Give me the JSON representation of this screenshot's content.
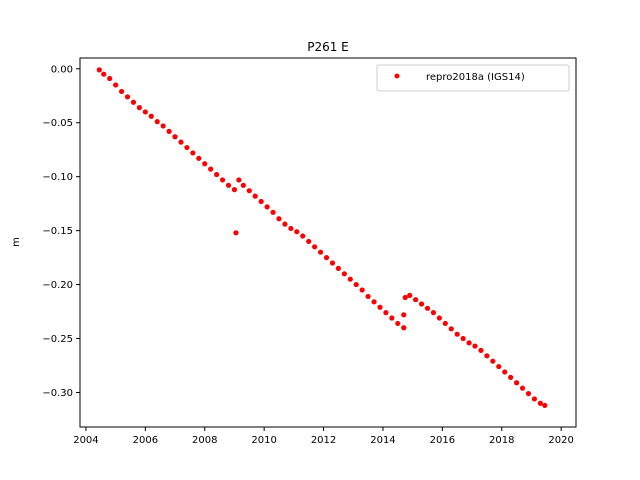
{
  "chart_data": {
    "type": "scatter",
    "title": "P261 E",
    "xlabel": "",
    "ylabel": "m",
    "xlim": [
      2003.8,
      2020.5
    ],
    "ylim": [
      -0.332,
      0.01
    ],
    "x_ticks": [
      2004,
      2006,
      2008,
      2010,
      2012,
      2014,
      2016,
      2018,
      2020
    ],
    "x_tick_labels": [
      "2004",
      "2006",
      "2008",
      "2010",
      "2012",
      "2014",
      "2016",
      "2018",
      "2020"
    ],
    "y_ticks": [
      0.0,
      -0.05,
      -0.1,
      -0.15,
      -0.2,
      -0.25,
      -0.3
    ],
    "y_tick_labels": [
      "0.00",
      "−0.05",
      "−0.10",
      "−0.15",
      "−0.20",
      "−0.25",
      "−0.30"
    ],
    "grid": false,
    "legend_position": "top-right",
    "marker_color": "#ff0000",
    "series": [
      {
        "name": "repro2018a (IGS14)",
        "color": "#ff0000",
        "x": [
          2004.45,
          2004.6,
          2004.8,
          2005.0,
          2005.2,
          2005.4,
          2005.6,
          2005.8,
          2006.0,
          2006.2,
          2006.4,
          2006.6,
          2006.8,
          2007.0,
          2007.2,
          2007.4,
          2007.6,
          2007.8,
          2008.0,
          2008.2,
          2008.4,
          2008.6,
          2008.8,
          2009.0,
          2009.15,
          2009.3,
          2009.5,
          2009.7,
          2009.9,
          2010.1,
          2010.3,
          2010.5,
          2010.7,
          2010.9,
          2011.1,
          2011.3,
          2011.5,
          2011.7,
          2011.9,
          2012.1,
          2012.3,
          2012.5,
          2012.7,
          2012.9,
          2013.1,
          2013.3,
          2013.5,
          2013.7,
          2013.9,
          2014.1,
          2014.3,
          2014.5,
          2014.7,
          2014.75,
          2014.9,
          2015.1,
          2015.3,
          2015.5,
          2015.7,
          2015.9,
          2016.1,
          2016.3,
          2016.5,
          2016.7,
          2016.9,
          2017.1,
          2017.3,
          2017.5,
          2017.7,
          2017.9,
          2018.1,
          2018.3,
          2018.5,
          2018.7,
          2018.9,
          2019.1,
          2019.3,
          2019.45
        ],
        "y": [
          -0.001,
          -0.005,
          -0.009,
          -0.015,
          -0.021,
          -0.026,
          -0.031,
          -0.036,
          -0.04,
          -0.044,
          -0.049,
          -0.053,
          -0.058,
          -0.063,
          -0.068,
          -0.073,
          -0.078,
          -0.083,
          -0.088,
          -0.093,
          -0.098,
          -0.103,
          -0.108,
          -0.112,
          -0.103,
          -0.108,
          -0.113,
          -0.118,
          -0.123,
          -0.128,
          -0.133,
          -0.139,
          -0.144,
          -0.148,
          -0.151,
          -0.155,
          -0.16,
          -0.165,
          -0.17,
          -0.175,
          -0.18,
          -0.185,
          -0.19,
          -0.195,
          -0.2,
          -0.205,
          -0.211,
          -0.216,
          -0.221,
          -0.226,
          -0.231,
          -0.236,
          -0.24,
          -0.212,
          -0.21,
          -0.214,
          -0.218,
          -0.222,
          -0.226,
          -0.231,
          -0.236,
          -0.241,
          -0.246,
          -0.25,
          -0.254,
          -0.257,
          -0.261,
          -0.266,
          -0.271,
          -0.276,
          -0.281,
          -0.286,
          -0.291,
          -0.296,
          -0.301,
          -0.306,
          -0.31,
          -0.312
        ]
      }
    ],
    "outliers": {
      "x": [
        2009.05,
        2014.7
      ],
      "y": [
        -0.152,
        -0.228
      ]
    }
  }
}
